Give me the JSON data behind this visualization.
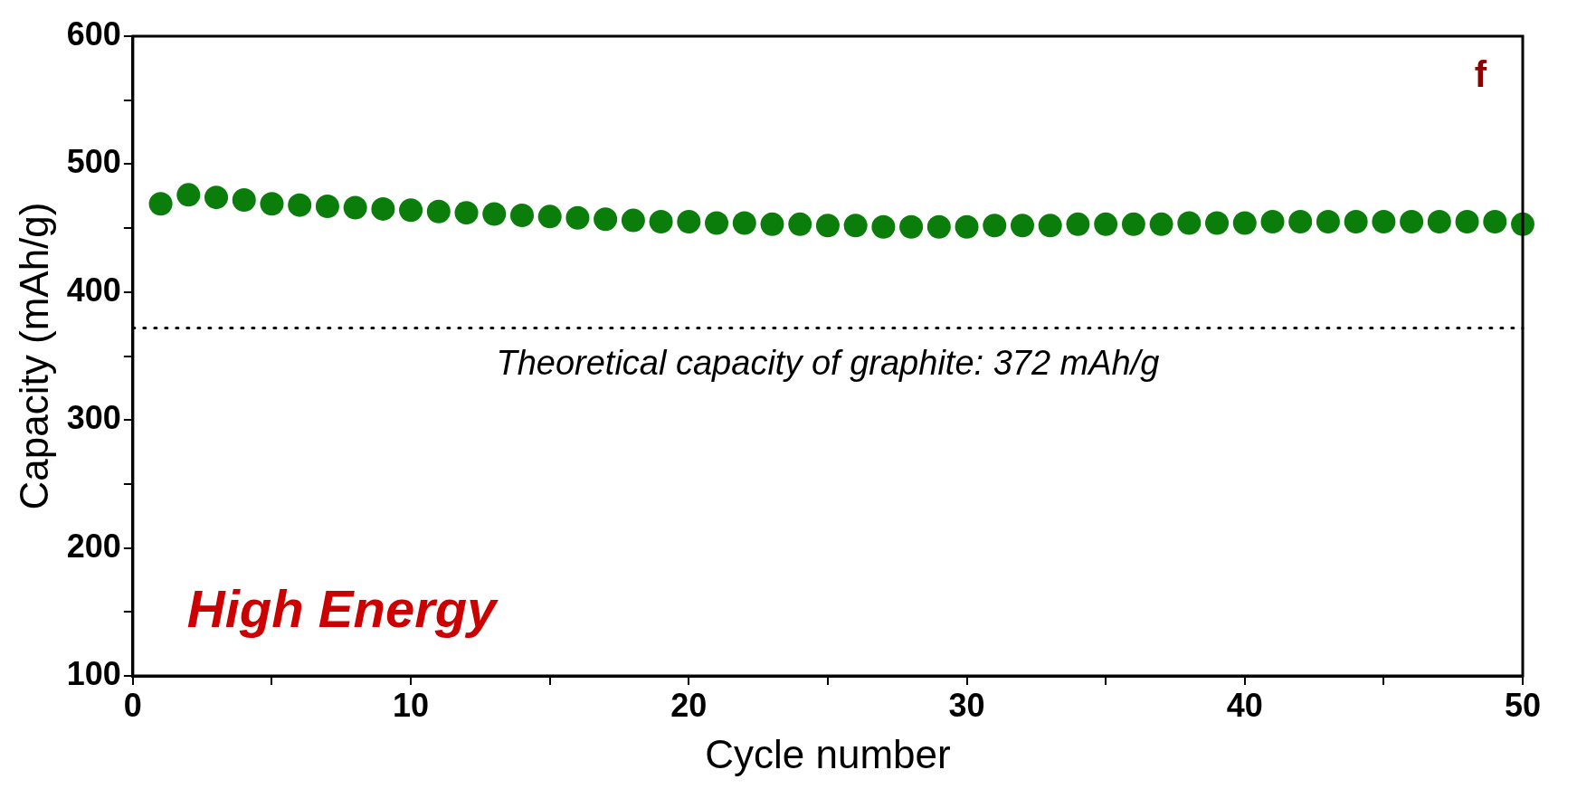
{
  "chart_data": {
    "type": "scatter",
    "xlabel": "Cycle number",
    "ylabel": "Capacity (mAh/g)",
    "x": [
      1,
      2,
      3,
      4,
      5,
      6,
      7,
      8,
      9,
      10,
      11,
      12,
      13,
      14,
      15,
      16,
      17,
      18,
      19,
      20,
      21,
      22,
      23,
      24,
      25,
      26,
      27,
      28,
      29,
      30,
      31,
      32,
      33,
      34,
      35,
      36,
      37,
      38,
      39,
      40,
      41,
      42,
      43,
      44,
      45,
      46,
      47,
      48,
      49,
      50
    ],
    "series": [
      {
        "color": "#0a7d0a",
        "values": [
          469,
          476,
          474,
          472,
          469,
          468,
          467,
          466,
          465,
          464,
          463,
          462,
          461,
          460,
          459,
          458,
          457,
          456,
          455,
          455,
          454,
          454,
          453,
          453,
          452,
          452,
          451,
          451,
          451,
          451,
          452,
          452,
          452,
          453,
          453,
          453,
          453,
          454,
          454,
          454,
          455,
          455,
          455,
          455,
          455,
          455,
          455,
          455,
          455,
          453
        ]
      }
    ],
    "xlim": [
      0,
      50
    ],
    "xticks": [
      0,
      {
        "value": 5,
        "label": null
      },
      10,
      {
        "value": 15,
        "label": null
      },
      20,
      {
        "value": 25,
        "label": null
      },
      30,
      {
        "value": 35,
        "label": null
      },
      40,
      {
        "value": 45,
        "label": null
      },
      50
    ],
    "ylim": [
      100,
      600
    ],
    "yticks": [
      100,
      {
        "value": 150,
        "label": null
      },
      200,
      {
        "value": 250,
        "label": null
      },
      300,
      {
        "value": 350,
        "label": null
      },
      400,
      {
        "value": 450,
        "label": null
      },
      500,
      {
        "value": 550,
        "label": null
      },
      600
    ],
    "ref_lines": [
      {
        "axis": "y",
        "value": 372,
        "label": "Theoretical capacity of graphite: 372 mAh/g",
        "color": "#000000",
        "line_style": "dotted"
      }
    ],
    "annotations": [
      "High Energy",
      "f"
    ],
    "marker": "circle",
    "grid": false,
    "legend": false
  }
}
